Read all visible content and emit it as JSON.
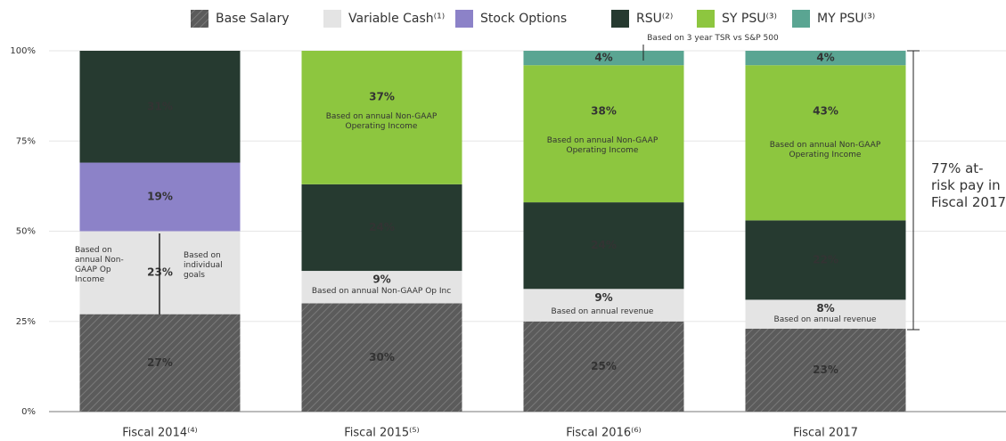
{
  "chart_data": {
    "type": "stacked_bar",
    "categories": [
      "Fiscal 2014⁽⁴⁾",
      "Fiscal 2015⁽⁵⁾",
      "Fiscal 2016⁽⁶⁾",
      "Fiscal 2017"
    ],
    "series": [
      {
        "name": "Base Salary",
        "color": "#5b5b5b",
        "hatch": true,
        "values": [
          27,
          30,
          25,
          23
        ],
        "value_labels": [
          "27%",
          "30%",
          "25%",
          "23%"
        ]
      },
      {
        "name": "Variable Cash⁽¹⁾",
        "color": "#e4e4e4",
        "values": [
          23,
          9,
          9,
          8
        ],
        "value_labels": [
          "23%",
          "9%",
          "9%",
          "8%"
        ]
      },
      {
        "name": "Stock Options",
        "color": "#8c82c8",
        "values": [
          19,
          null,
          null,
          null
        ],
        "value_labels": [
          "19%",
          null,
          null,
          null
        ]
      },
      {
        "name": "RSU⁽²⁾",
        "color": "#263a30",
        "values": [
          31,
          24,
          24,
          22
        ],
        "value_labels": [
          "31%",
          "24%",
          "24%",
          "22%"
        ]
      },
      {
        "name": "SY PSU⁽³⁾",
        "color": "#8dc63f",
        "values": [
          null,
          37,
          38,
          43
        ],
        "value_labels": [
          null,
          "37%",
          "38%",
          "43%"
        ]
      },
      {
        "name": "MY PSU⁽³⁾",
        "color": "#5aa592",
        "values": [
          null,
          null,
          4,
          4
        ],
        "value_labels": [
          null,
          null,
          "4%",
          "4%"
        ]
      }
    ],
    "ylim": [
      0,
      100
    ],
    "yticks": [
      {
        "value": 0,
        "label": "0%"
      },
      {
        "value": 25,
        "label": "25%"
      },
      {
        "value": 50,
        "label": "50%"
      },
      {
        "value": 75,
        "label": "75%"
      },
      {
        "value": 100,
        "label": "100%"
      }
    ],
    "grid": true,
    "legend": "top",
    "annotations": [
      "Based on annual Non-GAAP Op Income",
      "Based on individual goals",
      "Based on annual Non-GAAP Operating Income",
      "Based on annual Non-GAAP Operating Income",
      "Based on annual Non-GAAP Operating Income",
      "Based on annual Non-GAAP Op Inc",
      "Based on annual revenue",
      "Based on annual revenue",
      "Based on 3 year TSR vs S&P 500",
      "77% at-risk pay in Fiscal 2017"
    ]
  }
}
